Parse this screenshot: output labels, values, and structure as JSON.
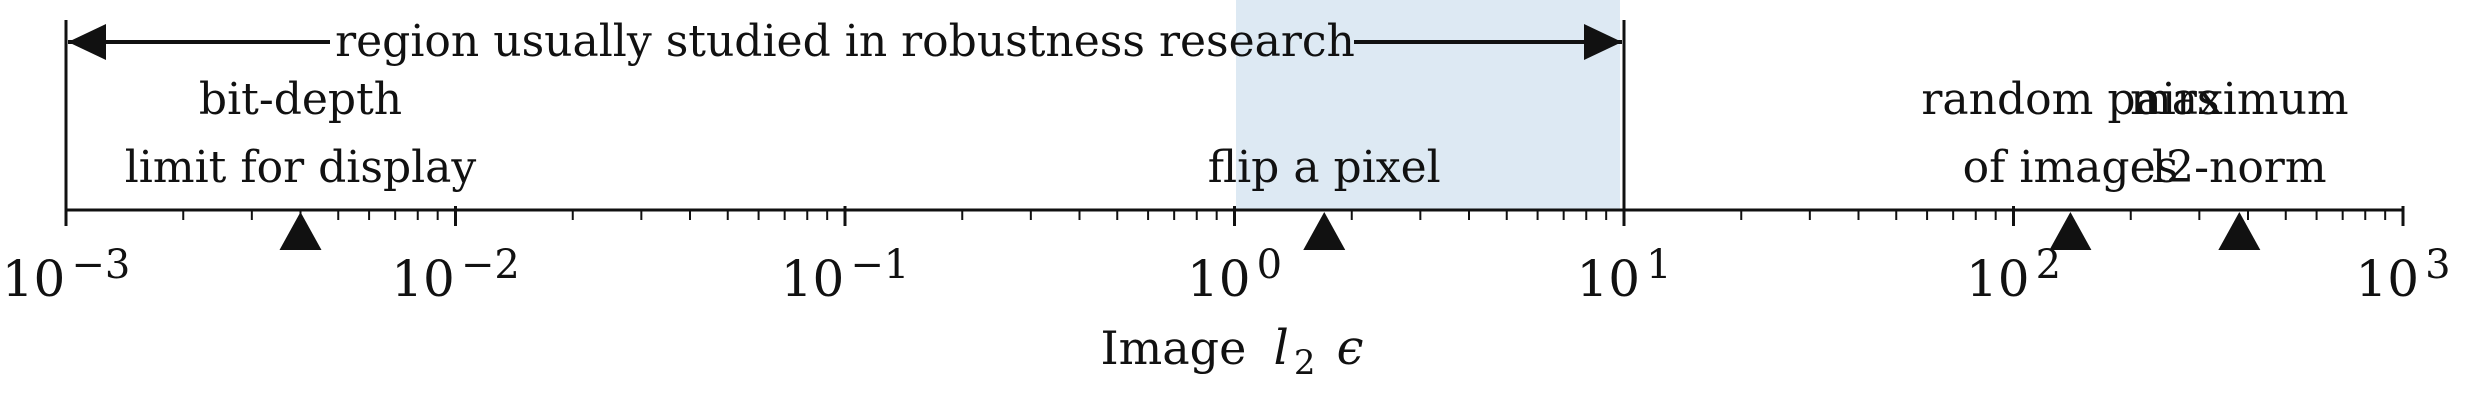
{
  "chart_data": {
    "type": "scatter",
    "scale": "log10",
    "xlim": [
      0.001,
      1000
    ],
    "xlabel": {
      "prefix": "Image",
      "symbol": "l",
      "subscript": "2",
      "epsilon": "ϵ"
    },
    "ticks": [
      {
        "base": "10",
        "exp": "−3",
        "value": 0.001
      },
      {
        "base": "10",
        "exp": "−2",
        "value": 0.01
      },
      {
        "base": "10",
        "exp": "−1",
        "value": 0.1
      },
      {
        "base": "10",
        "exp": "0",
        "value": 1
      },
      {
        "base": "10",
        "exp": "1",
        "value": 10
      },
      {
        "base": "10",
        "exp": "2",
        "value": 100
      },
      {
        "base": "10",
        "exp": "3",
        "value": 1000
      }
    ],
    "region": {
      "label": "region usually studied in robustness research",
      "from": 0.001,
      "to": 10,
      "color": "#dde9f3"
    },
    "markers": [
      {
        "value": 0.004,
        "lines": [
          "bit-depth",
          "limit for display"
        ]
      },
      {
        "value": 1.7,
        "lines": [
          "flip a pixel"
        ]
      },
      {
        "value": 140,
        "lines": [
          "random pairs",
          "of images"
        ]
      },
      {
        "value": 380,
        "lines": [
          "maximum",
          "l2-norm"
        ]
      }
    ]
  }
}
